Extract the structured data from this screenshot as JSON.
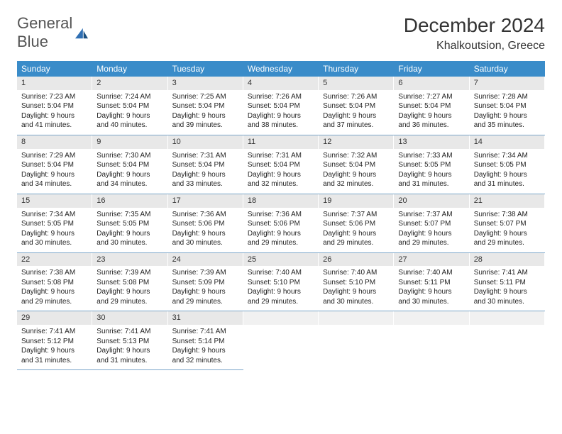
{
  "logo": {
    "text_gray": "General",
    "text_blue": "Blue"
  },
  "title": "December 2024",
  "location": "Khalkoutsion, Greece",
  "day_headers": [
    "Sunday",
    "Monday",
    "Tuesday",
    "Wednesday",
    "Thursday",
    "Friday",
    "Saturday"
  ],
  "colors": {
    "header_bg": "#3a8cc9",
    "header_text": "#ffffff",
    "daynum_bg": "#e8e8e8",
    "row_border": "#7ba6c9",
    "logo_gray": "#555555",
    "logo_blue": "#2f6fb3"
  },
  "weeks": [
    [
      {
        "n": "1",
        "sr": "Sunrise: 7:23 AM",
        "ss": "Sunset: 5:04 PM",
        "d1": "Daylight: 9 hours",
        "d2": "and 41 minutes."
      },
      {
        "n": "2",
        "sr": "Sunrise: 7:24 AM",
        "ss": "Sunset: 5:04 PM",
        "d1": "Daylight: 9 hours",
        "d2": "and 40 minutes."
      },
      {
        "n": "3",
        "sr": "Sunrise: 7:25 AM",
        "ss": "Sunset: 5:04 PM",
        "d1": "Daylight: 9 hours",
        "d2": "and 39 minutes."
      },
      {
        "n": "4",
        "sr": "Sunrise: 7:26 AM",
        "ss": "Sunset: 5:04 PM",
        "d1": "Daylight: 9 hours",
        "d2": "and 38 minutes."
      },
      {
        "n": "5",
        "sr": "Sunrise: 7:26 AM",
        "ss": "Sunset: 5:04 PM",
        "d1": "Daylight: 9 hours",
        "d2": "and 37 minutes."
      },
      {
        "n": "6",
        "sr": "Sunrise: 7:27 AM",
        "ss": "Sunset: 5:04 PM",
        "d1": "Daylight: 9 hours",
        "d2": "and 36 minutes."
      },
      {
        "n": "7",
        "sr": "Sunrise: 7:28 AM",
        "ss": "Sunset: 5:04 PM",
        "d1": "Daylight: 9 hours",
        "d2": "and 35 minutes."
      }
    ],
    [
      {
        "n": "8",
        "sr": "Sunrise: 7:29 AM",
        "ss": "Sunset: 5:04 PM",
        "d1": "Daylight: 9 hours",
        "d2": "and 34 minutes."
      },
      {
        "n": "9",
        "sr": "Sunrise: 7:30 AM",
        "ss": "Sunset: 5:04 PM",
        "d1": "Daylight: 9 hours",
        "d2": "and 34 minutes."
      },
      {
        "n": "10",
        "sr": "Sunrise: 7:31 AM",
        "ss": "Sunset: 5:04 PM",
        "d1": "Daylight: 9 hours",
        "d2": "and 33 minutes."
      },
      {
        "n": "11",
        "sr": "Sunrise: 7:31 AM",
        "ss": "Sunset: 5:04 PM",
        "d1": "Daylight: 9 hours",
        "d2": "and 32 minutes."
      },
      {
        "n": "12",
        "sr": "Sunrise: 7:32 AM",
        "ss": "Sunset: 5:04 PM",
        "d1": "Daylight: 9 hours",
        "d2": "and 32 minutes."
      },
      {
        "n": "13",
        "sr": "Sunrise: 7:33 AM",
        "ss": "Sunset: 5:05 PM",
        "d1": "Daylight: 9 hours",
        "d2": "and 31 minutes."
      },
      {
        "n": "14",
        "sr": "Sunrise: 7:34 AM",
        "ss": "Sunset: 5:05 PM",
        "d1": "Daylight: 9 hours",
        "d2": "and 31 minutes."
      }
    ],
    [
      {
        "n": "15",
        "sr": "Sunrise: 7:34 AM",
        "ss": "Sunset: 5:05 PM",
        "d1": "Daylight: 9 hours",
        "d2": "and 30 minutes."
      },
      {
        "n": "16",
        "sr": "Sunrise: 7:35 AM",
        "ss": "Sunset: 5:05 PM",
        "d1": "Daylight: 9 hours",
        "d2": "and 30 minutes."
      },
      {
        "n": "17",
        "sr": "Sunrise: 7:36 AM",
        "ss": "Sunset: 5:06 PM",
        "d1": "Daylight: 9 hours",
        "d2": "and 30 minutes."
      },
      {
        "n": "18",
        "sr": "Sunrise: 7:36 AM",
        "ss": "Sunset: 5:06 PM",
        "d1": "Daylight: 9 hours",
        "d2": "and 29 minutes."
      },
      {
        "n": "19",
        "sr": "Sunrise: 7:37 AM",
        "ss": "Sunset: 5:06 PM",
        "d1": "Daylight: 9 hours",
        "d2": "and 29 minutes."
      },
      {
        "n": "20",
        "sr": "Sunrise: 7:37 AM",
        "ss": "Sunset: 5:07 PM",
        "d1": "Daylight: 9 hours",
        "d2": "and 29 minutes."
      },
      {
        "n": "21",
        "sr": "Sunrise: 7:38 AM",
        "ss": "Sunset: 5:07 PM",
        "d1": "Daylight: 9 hours",
        "d2": "and 29 minutes."
      }
    ],
    [
      {
        "n": "22",
        "sr": "Sunrise: 7:38 AM",
        "ss": "Sunset: 5:08 PM",
        "d1": "Daylight: 9 hours",
        "d2": "and 29 minutes."
      },
      {
        "n": "23",
        "sr": "Sunrise: 7:39 AM",
        "ss": "Sunset: 5:08 PM",
        "d1": "Daylight: 9 hours",
        "d2": "and 29 minutes."
      },
      {
        "n": "24",
        "sr": "Sunrise: 7:39 AM",
        "ss": "Sunset: 5:09 PM",
        "d1": "Daylight: 9 hours",
        "d2": "and 29 minutes."
      },
      {
        "n": "25",
        "sr": "Sunrise: 7:40 AM",
        "ss": "Sunset: 5:10 PM",
        "d1": "Daylight: 9 hours",
        "d2": "and 29 minutes."
      },
      {
        "n": "26",
        "sr": "Sunrise: 7:40 AM",
        "ss": "Sunset: 5:10 PM",
        "d1": "Daylight: 9 hours",
        "d2": "and 30 minutes."
      },
      {
        "n": "27",
        "sr": "Sunrise: 7:40 AM",
        "ss": "Sunset: 5:11 PM",
        "d1": "Daylight: 9 hours",
        "d2": "and 30 minutes."
      },
      {
        "n": "28",
        "sr": "Sunrise: 7:41 AM",
        "ss": "Sunset: 5:11 PM",
        "d1": "Daylight: 9 hours",
        "d2": "and 30 minutes."
      }
    ],
    [
      {
        "n": "29",
        "sr": "Sunrise: 7:41 AM",
        "ss": "Sunset: 5:12 PM",
        "d1": "Daylight: 9 hours",
        "d2": "and 31 minutes."
      },
      {
        "n": "30",
        "sr": "Sunrise: 7:41 AM",
        "ss": "Sunset: 5:13 PM",
        "d1": "Daylight: 9 hours",
        "d2": "and 31 minutes."
      },
      {
        "n": "31",
        "sr": "Sunrise: 7:41 AM",
        "ss": "Sunset: 5:14 PM",
        "d1": "Daylight: 9 hours",
        "d2": "and 32 minutes."
      },
      {
        "empty": true
      },
      {
        "empty": true
      },
      {
        "empty": true
      },
      {
        "empty": true
      }
    ]
  ]
}
